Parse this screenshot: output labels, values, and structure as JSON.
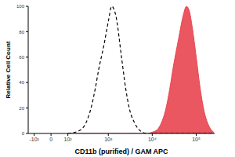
{
  "chart_data": {
    "type": "line",
    "x_label": "CD11b (purified) / GAM APC",
    "y_label": "Relative Cell Count",
    "x": [
      100,
      200,
      300,
      400,
      500,
      600,
      800,
      1000,
      1200,
      1500,
      2000,
      2500,
      3000,
      4000,
      5000,
      6000,
      8000,
      10000,
      13000,
      16000,
      20000,
      25000,
      30000,
      40000,
      50000,
      60000,
      70000,
      80000,
      100000,
      120000,
      150000,
      200000,
      250000
    ],
    "series": [
      {
        "type": "area",
        "color": "#e8454f",
        "line_style": "solid",
        "values": [
          0,
          0,
          0,
          0,
          0,
          0,
          0,
          0,
          0,
          0,
          0,
          0,
          0,
          0,
          0,
          0,
          0,
          1,
          3,
          8,
          18,
          35,
          52,
          75,
          92,
          100,
          96,
          85,
          60,
          38,
          18,
          5,
          1
        ]
      },
      {
        "type": "line",
        "color": "#000000",
        "line_style": "dashed",
        "values": [
          0,
          2,
          8,
          20,
          35,
          50,
          70,
          88,
          100,
          92,
          60,
          35,
          20,
          8,
          3,
          1,
          0,
          0,
          0,
          0,
          0,
          0,
          0,
          0,
          0,
          0,
          0,
          0,
          0,
          0,
          0,
          0,
          0
        ]
      }
    ],
    "xlim": [
      -150,
      262144
    ],
    "xticks": [
      {
        "value": -100,
        "label": "-10²"
      },
      0,
      {
        "value": 100,
        "label": "10²"
      },
      {
        "value": 1000,
        "label": "10³"
      },
      {
        "value": 10000,
        "label": "10⁴"
      },
      {
        "value": 100000,
        "label": "10⁵"
      }
    ],
    "ylim": [
      0,
      100
    ],
    "yticks": [
      0,
      20,
      40,
      60,
      80,
      100
    ],
    "grid": false
  }
}
